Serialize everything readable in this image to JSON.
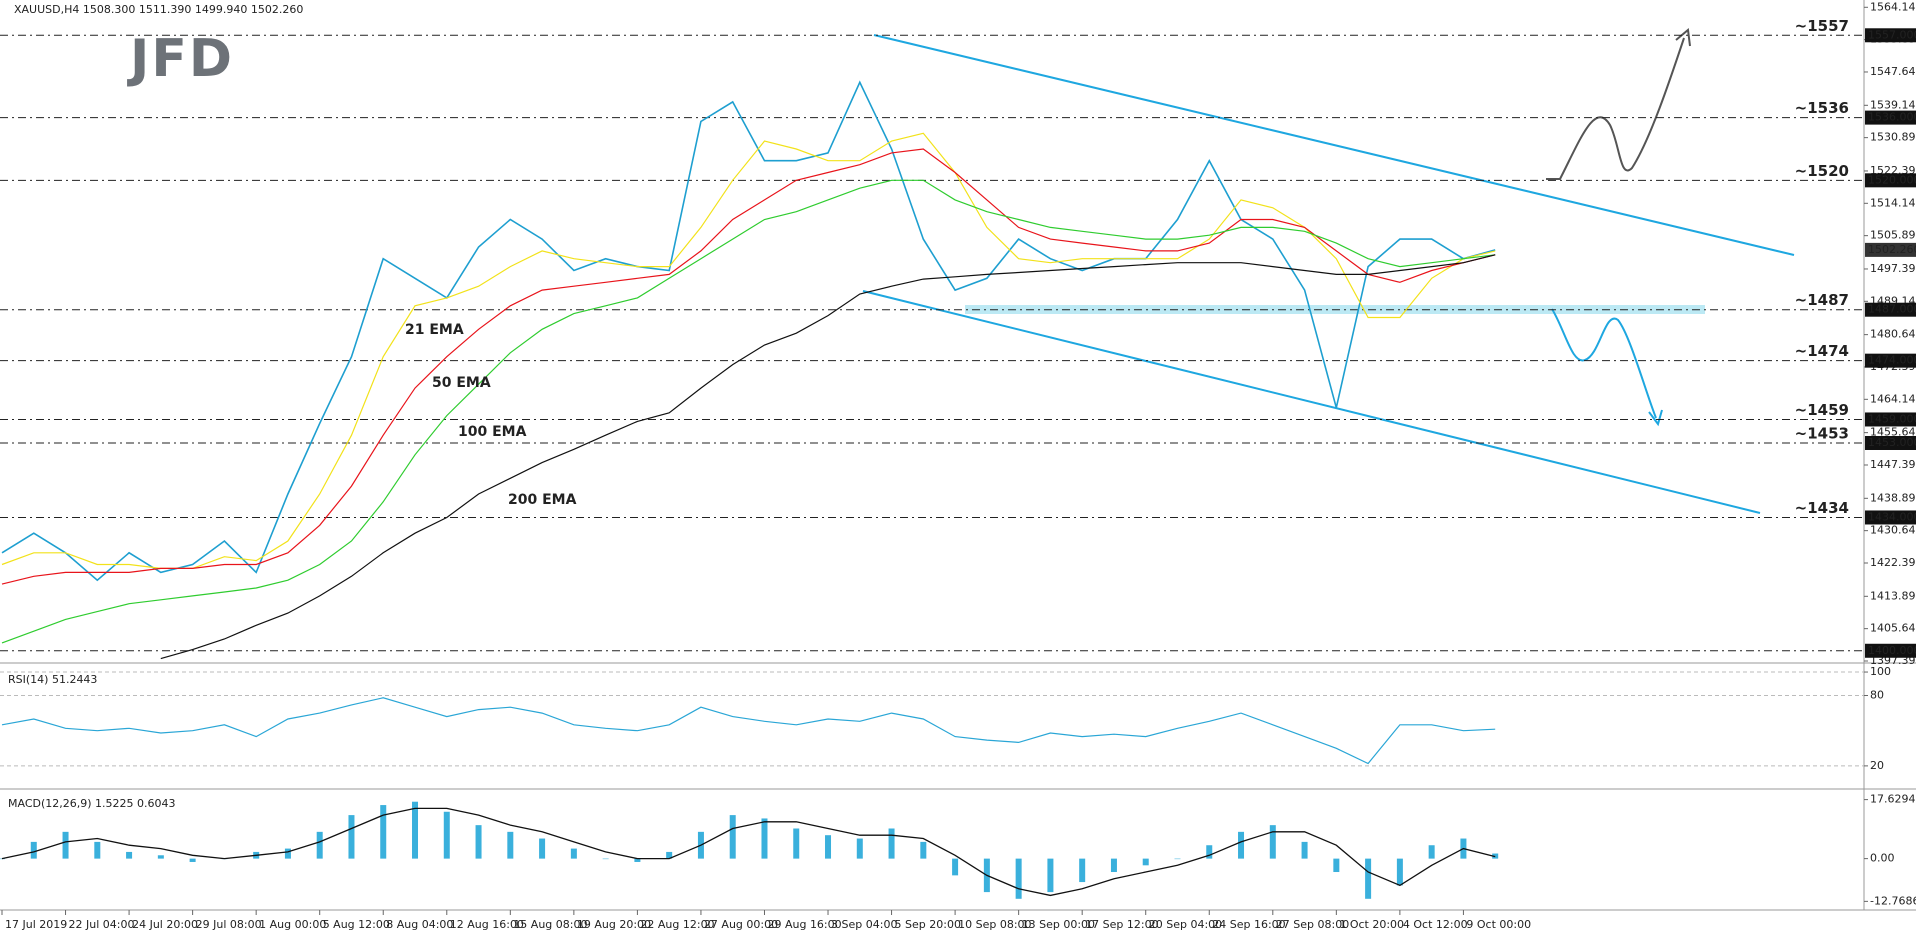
{
  "chart_data": [
    {
      "type": "line",
      "title": "XAUUSD,H4  1508.300 1511.390 1499.940 1502.260",
      "logo": "JFD",
      "ylim": [
        1397.39,
        1566
      ],
      "yticks": [
        {
          "value": 1564.14,
          "label": "1564.140"
        },
        {
          "value": 1555.89,
          "label": "1555.890"
        },
        {
          "value": 1547.64,
          "label": "1547.640"
        },
        {
          "value": 1539.14,
          "label": "1539.140"
        },
        {
          "value": 1530.89,
          "label": "1530.890"
        },
        {
          "value": 1522.39,
          "label": "1522.390"
        },
        {
          "value": 1514.14,
          "label": "1514.140"
        },
        {
          "value": 1505.89,
          "label": "1505.890"
        },
        {
          "value": 1497.39,
          "label": "1497.390"
        },
        {
          "value": 1489.14,
          "label": "1489.140"
        },
        {
          "value": 1480.64,
          "label": "1480.640"
        },
        {
          "value": 1472.39,
          "label": "1472.390"
        },
        {
          "value": 1464.14,
          "label": "1464.140"
        },
        {
          "value": 1455.64,
          "label": "1455.640"
        },
        {
          "value": 1447.39,
          "label": "1447.390"
        },
        {
          "value": 1438.89,
          "label": "1438.890"
        },
        {
          "value": 1430.64,
          "label": "1430.640"
        },
        {
          "value": 1422.39,
          "label": "1422.390"
        },
        {
          "value": 1413.89,
          "label": "1413.890"
        },
        {
          "value": 1405.64,
          "label": "1405.640"
        },
        {
          "value": 1397.39,
          "label": "1397.390"
        }
      ],
      "series": [
        {
          "color": "#1e9fd0",
          "values": [
            1425,
            1430,
            1425,
            1418,
            1425,
            1420,
            1422,
            1428,
            1420,
            1440,
            1458,
            1475,
            1500,
            1495,
            1490,
            1503,
            1510,
            1505,
            1497,
            1500,
            1498,
            1497,
            1535,
            1540,
            1525,
            1525,
            1527,
            1545,
            1528,
            1505,
            1492,
            1495,
            1505,
            1500,
            1497,
            1500,
            1500,
            1510,
            1525,
            1510,
            1505,
            1492,
            1462,
            1498,
            1505,
            1505,
            1500,
            1502.26
          ]
        },
        {
          "name": "21 EMA",
          "color": "#f2e21a",
          "values": [
            1422,
            1425,
            1425,
            1422,
            1422,
            1421,
            1421,
            1424,
            1423,
            1428,
            1440,
            1455,
            1475,
            1488,
            1490,
            1493,
            1498,
            1502,
            1500,
            1499,
            1498,
            1498,
            1508,
            1520,
            1530,
            1528,
            1525,
            1525,
            1530,
            1532,
            1522,
            1508,
            1500,
            1499,
            1500,
            1500,
            1500,
            1500,
            1505,
            1515,
            1513,
            1508,
            1500,
            1485,
            1485,
            1495,
            1500,
            1502
          ]
        },
        {
          "name": "50 EMA",
          "color": "#e8141b",
          "values": [
            1417,
            1419,
            1420,
            1420,
            1420,
            1421,
            1421,
            1422,
            1422,
            1425,
            1432,
            1442,
            1455,
            1467,
            1475,
            1482,
            1488,
            1492,
            1493,
            1494,
            1495,
            1496,
            1502,
            1510,
            1515,
            1520,
            1522,
            1524,
            1527,
            1528,
            1522,
            1515,
            1508,
            1505,
            1504,
            1503,
            1502,
            1502,
            1504,
            1510,
            1510,
            1508,
            1502,
            1496,
            1494,
            1497,
            1499,
            1501
          ]
        },
        {
          "name": "100 EMA",
          "color": "#2fcc2f",
          "values": [
            1402,
            1405,
            1408,
            1410,
            1412,
            1413,
            1414,
            1415,
            1416,
            1418,
            1422,
            1428,
            1438,
            1450,
            1460,
            1468,
            1476,
            1482,
            1486,
            1488,
            1490,
            1495,
            1500,
            1505,
            1510,
            1512,
            1515,
            1518,
            1520,
            1520,
            1515,
            1512,
            1510,
            1508,
            1507,
            1506,
            1505,
            1505,
            1506,
            1508,
            1508,
            1507,
            1504,
            1500,
            1498,
            1499,
            1500,
            1501
          ]
        },
        {
          "name": "200 EMA",
          "color": "#111111",
          "values": [
            null,
            null,
            null,
            null,
            null,
            1398,
            1400.3,
            1403,
            1406.5,
            1409.6,
            1414,
            1419,
            1425,
            1430,
            1434,
            1440,
            1444,
            1448,
            1451.4,
            1455,
            1458.5,
            1460.7,
            1467,
            1473,
            1478,
            1481,
            1485.5,
            1491,
            1493,
            1494.8,
            1495.4,
            1496,
            1496.5,
            1497,
            1497.5,
            1498,
            1498.5,
            1499,
            1499,
            1499,
            1498,
            1497,
            1496,
            1496,
            1497,
            1498,
            1499,
            1501
          ]
        }
      ],
      "levels": [
        {
          "value": 1557,
          "label": "1557.000"
        },
        {
          "value": 1536,
          "label": "1536.000"
        },
        {
          "value": 1520,
          "label": "1520.000"
        },
        {
          "value": 1487,
          "label": "1487.000"
        },
        {
          "value": 1474,
          "label": "1474.000"
        },
        {
          "value": 1459,
          "label": "1459.000"
        },
        {
          "value": 1453,
          "label": "1453.000"
        },
        {
          "value": 1434,
          "label": "1434.000"
        },
        {
          "value": 1400,
          "label": "1400.000"
        }
      ],
      "level_notes": [
        "~1557",
        "~1536",
        "~1520",
        "~1487",
        "~1474",
        "~1459",
        "~1453",
        "~1434",
        null
      ],
      "level_note_colors": [
        "#555555",
        "#555555",
        "#555555",
        "#29a3d3",
        "#29a3d3",
        "#29a3d3",
        "#29a3d3",
        "#29a3d3",
        "#29a3d3"
      ],
      "last_price": {
        "value": 1502.26,
        "label": "1502.260"
      }
    },
    {
      "type": "line",
      "title": "RSI(14) 51.2443",
      "ylim": [
        2,
        106
      ],
      "yticks": [
        20,
        80,
        100
      ],
      "series": [
        {
          "color": "#2aa6d6",
          "values": [
            55,
            60,
            52,
            50,
            52,
            48,
            50,
            55,
            45,
            60,
            65,
            72,
            78,
            70,
            62,
            68,
            70,
            65,
            55,
            52,
            50,
            55,
            70,
            62,
            58,
            55,
            60,
            58,
            65,
            60,
            45,
            42,
            40,
            48,
            45,
            47,
            45,
            52,
            58,
            65,
            55,
            45,
            35,
            22,
            55,
            55,
            50,
            51.2443
          ]
        }
      ]
    },
    {
      "type": "macd",
      "title": "MACD(12,26,9) 1.5225 0.6043",
      "ylim": [
        -14.75,
        20.5
      ],
      "yticks": [
        17.6294,
        {
          "value": 0,
          "label": "0.00"
        },
        -12.7686
      ],
      "series": [
        {
          "kind": "bar",
          "color": "#3ab0dc",
          "values": [
            0,
            5,
            8,
            5,
            2,
            1,
            -1,
            0,
            2,
            3,
            8,
            13,
            16,
            17,
            14,
            10,
            8,
            6,
            3,
            0,
            -1,
            2,
            8,
            13,
            12,
            9,
            7,
            6,
            9,
            5,
            -5,
            -10,
            -12,
            -10,
            -7,
            -4,
            -2,
            0,
            4,
            8,
            10,
            5,
            -4,
            -12,
            -8,
            4,
            6,
            1.5225
          ]
        },
        {
          "kind": "line",
          "color": "#111111",
          "values": [
            0,
            2,
            5,
            6,
            4,
            3,
            1,
            0,
            1,
            2,
            5,
            9,
            13,
            15,
            15,
            13,
            10,
            8,
            5,
            2,
            0,
            0,
            4,
            9,
            11,
            11,
            9,
            7,
            7,
            6,
            1,
            -5,
            -9,
            -11,
            -9,
            -6,
            -4,
            -2,
            1,
            5,
            8,
            8,
            4,
            -4,
            -8,
            -2,
            3,
            0.6043
          ]
        }
      ],
      "xlabels": [
        "17 Jul 2019",
        "22 Jul 04:00",
        "24 Jul 20:00",
        "29 Jul 08:00",
        "1 Aug 00:00",
        "5 Aug 12:00",
        "8 Aug 04:00",
        "12 Aug 16:00",
        "15 Aug 08:00",
        "19 Aug 20:00",
        "22 Aug 12:00",
        "27 Aug 00:00",
        "29 Aug 16:00",
        "3 Sep 04:00",
        "5 Sep 20:00",
        "10 Sep 08:00",
        "13 Sep 00:00",
        "17 Sep 12:00",
        "20 Sep 04:00",
        "24 Sep 16:00",
        "27 Sep 08:00",
        "1 Oct 20:00",
        "4 Oct 12:00",
        "9 Oct 00:00"
      ]
    }
  ]
}
